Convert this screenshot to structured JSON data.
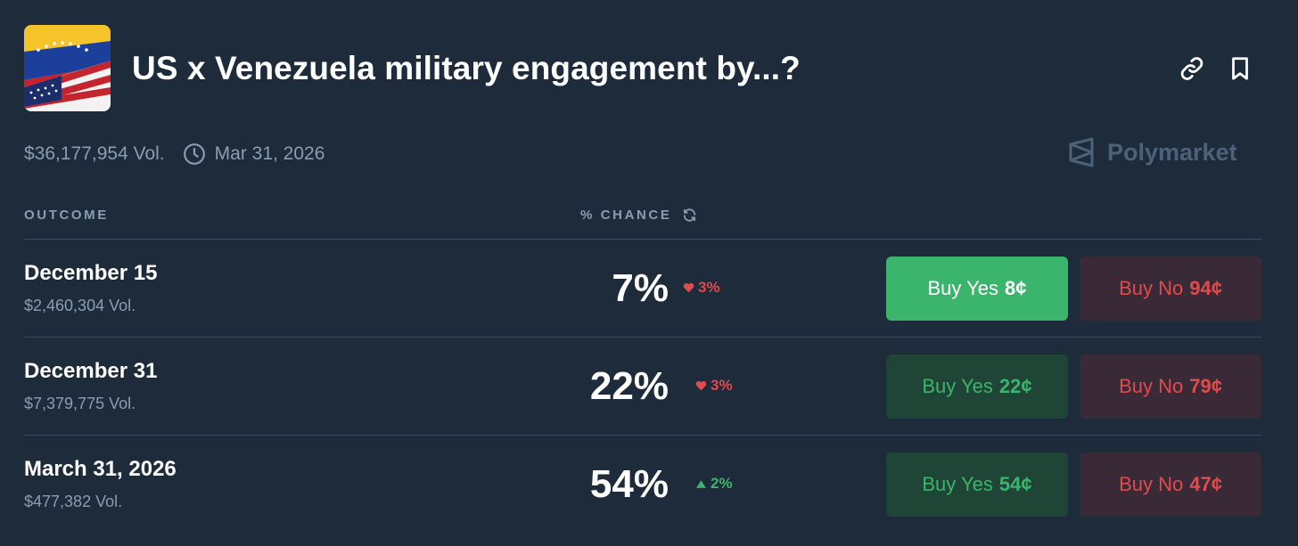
{
  "header": {
    "title": "US x Venezuela military engagement by...?",
    "flag_icon": "us-venezuela-flags",
    "link_icon": "link-icon",
    "bookmark_icon": "bookmark-icon"
  },
  "meta": {
    "volume": "$36,177,954 Vol.",
    "end_date": "Mar 31, 2026",
    "brand": "Polymarket"
  },
  "columns": {
    "outcome": "OUTCOME",
    "chance": "% CHANCE"
  },
  "colors": {
    "background": "#1d2b3a",
    "yes_green": "#3bb56b",
    "no_red": "#e24b4b",
    "muted": "#8b9db3"
  },
  "outcomes": [
    {
      "name": "December 15",
      "volume": "$2,460,304 Vol.",
      "chance": "7%",
      "change": "3%",
      "direction": "down",
      "buy_yes_label": "Buy Yes",
      "buy_yes_price": "8¢",
      "buy_no_label": "Buy No",
      "buy_no_price": "94¢"
    },
    {
      "name": "December 31",
      "volume": "$7,379,775 Vol.",
      "chance": "22%",
      "change": "3%",
      "direction": "down",
      "buy_yes_label": "Buy Yes",
      "buy_yes_price": "22¢",
      "buy_no_label": "Buy No",
      "buy_no_price": "79¢"
    },
    {
      "name": "March 31, 2026",
      "volume": "$477,382 Vol.",
      "chance": "54%",
      "change": "2%",
      "direction": "up",
      "buy_yes_label": "Buy Yes",
      "buy_yes_price": "54¢",
      "buy_no_label": "Buy No",
      "buy_no_price": "47¢"
    }
  ]
}
